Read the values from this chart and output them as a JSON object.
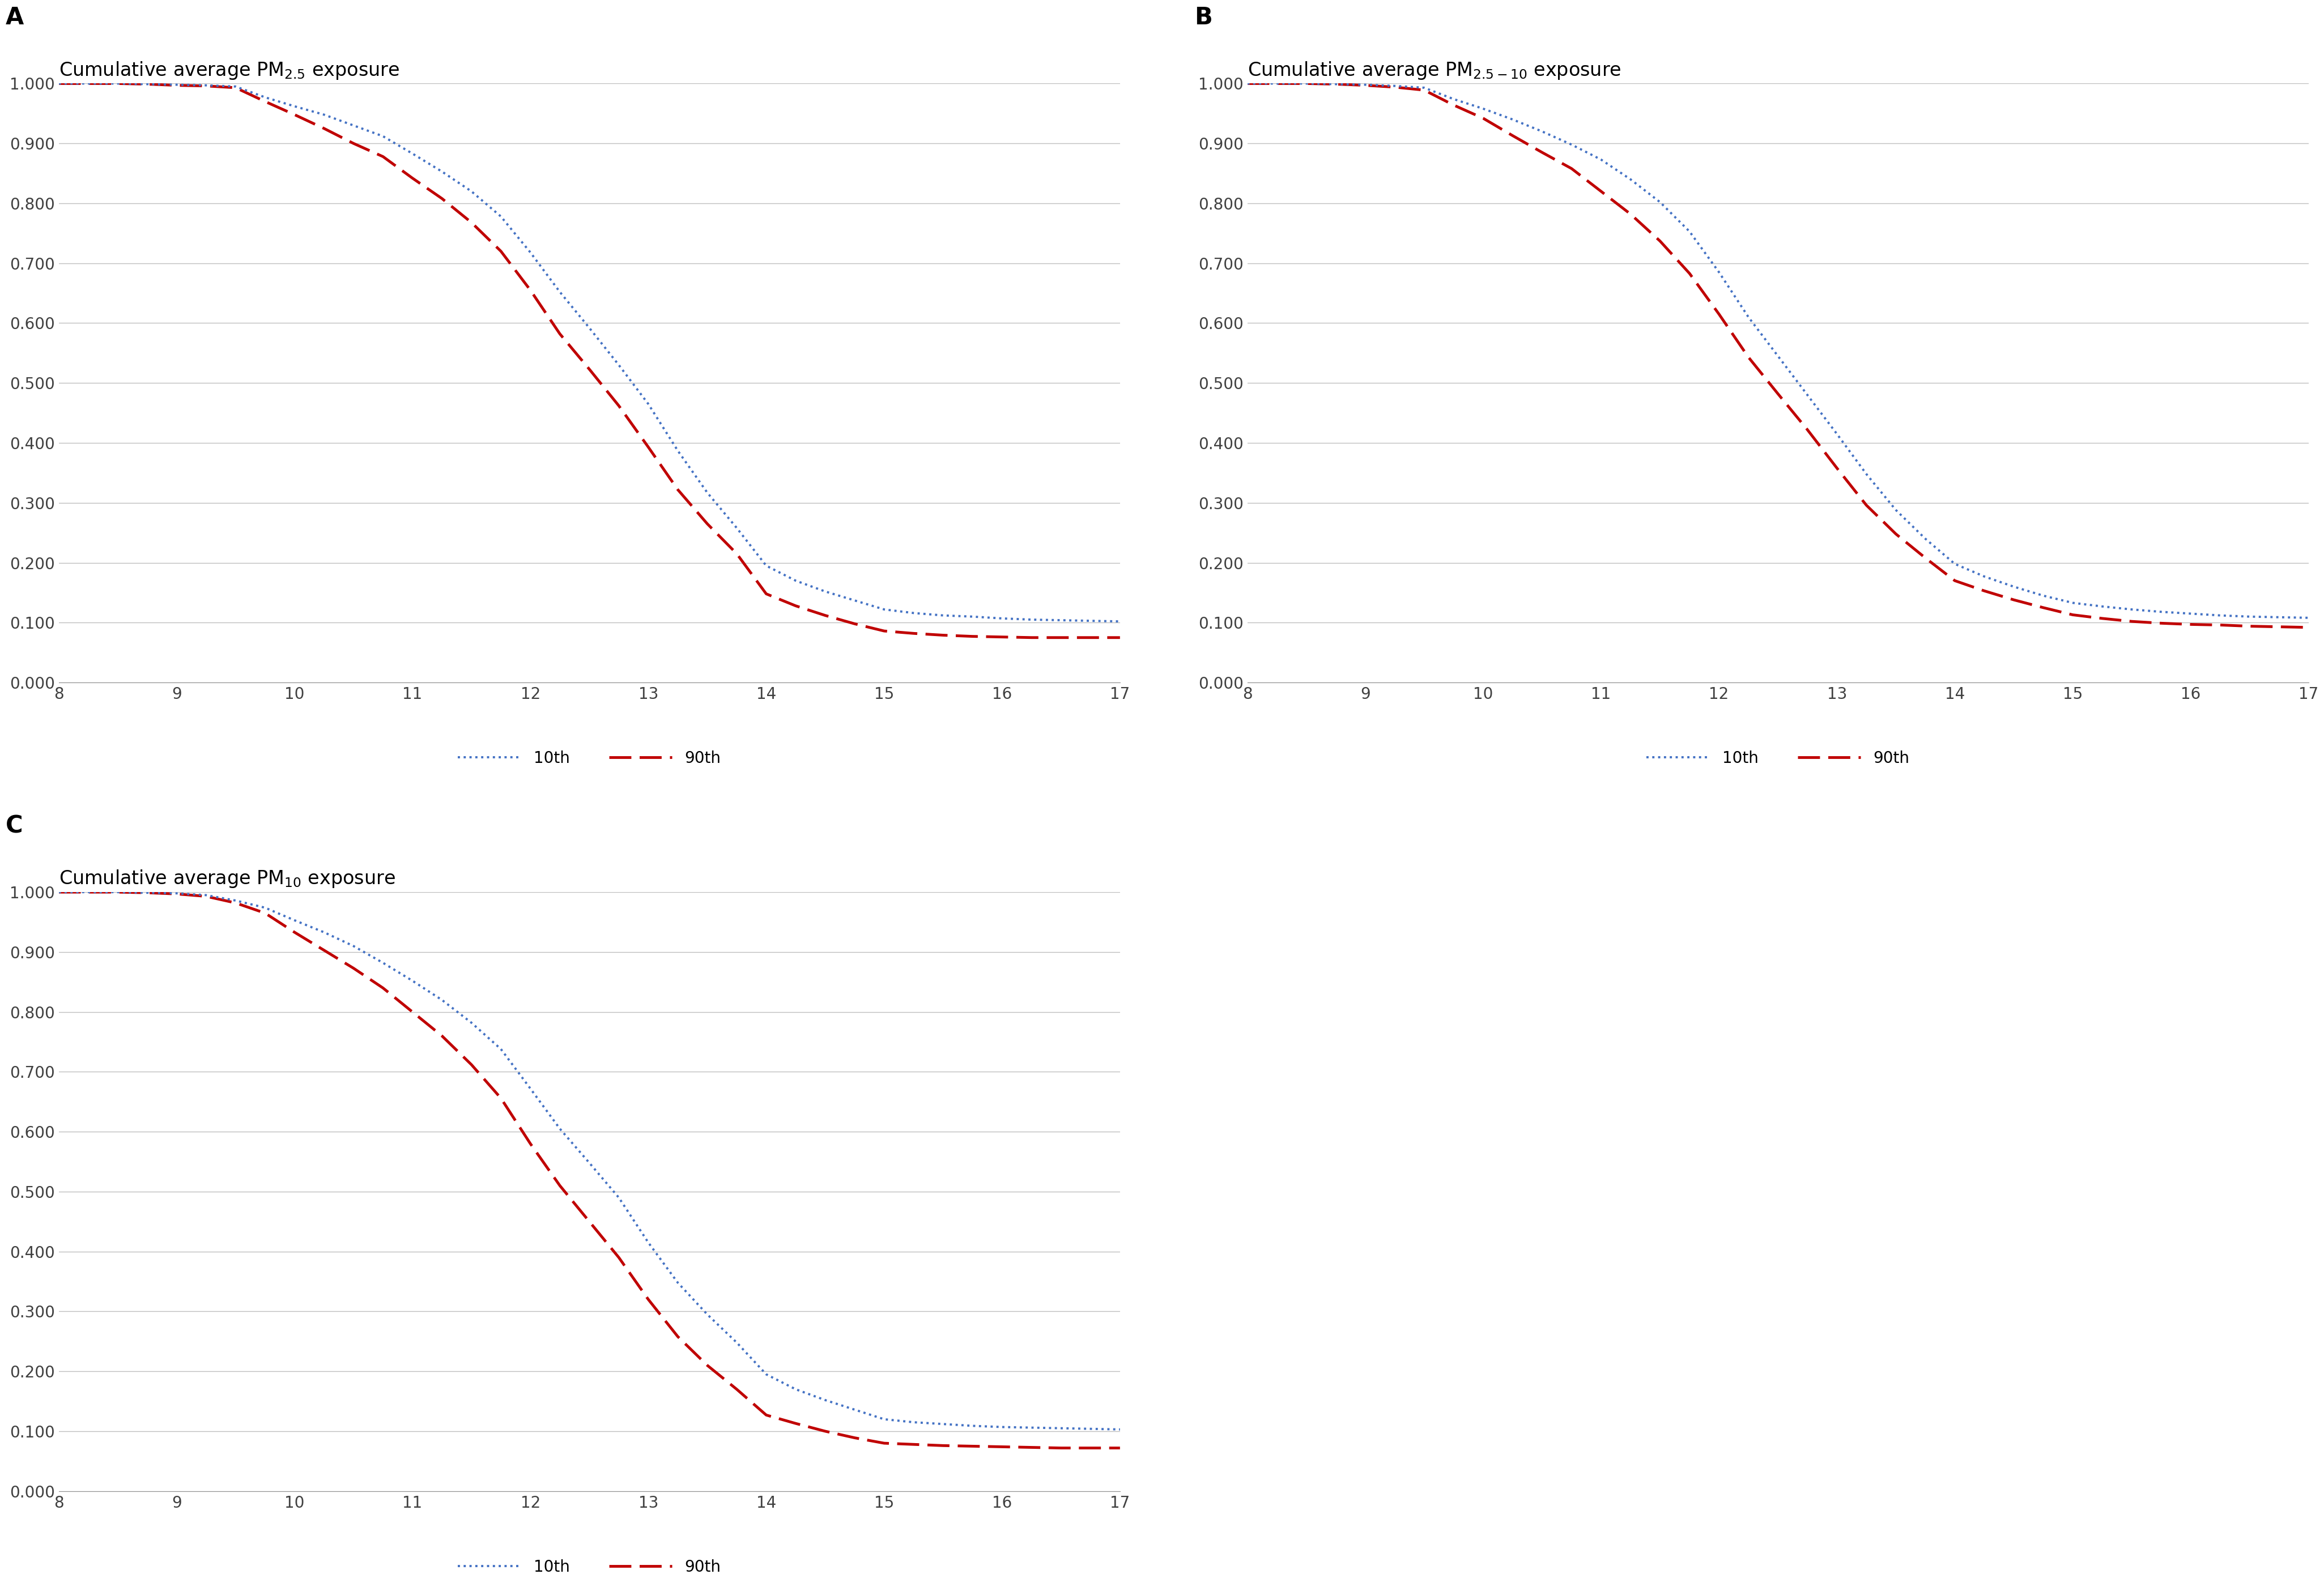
{
  "panel_labels": [
    "A",
    "B",
    "C"
  ],
  "titles": [
    "Cumulative average PM$_{2.5}$ exposure",
    "Cumulative average PM$_{2.5-10}$ exposure",
    "Cumulative average PM$_{10}$ exposure"
  ],
  "x_values": [
    8.0,
    8.25,
    8.5,
    8.75,
    9.0,
    9.25,
    9.5,
    9.75,
    10.0,
    10.25,
    10.5,
    10.75,
    11.0,
    11.25,
    11.5,
    11.75,
    12.0,
    12.25,
    12.5,
    12.75,
    13.0,
    13.25,
    13.5,
    13.75,
    14.0,
    14.25,
    14.5,
    14.75,
    15.0,
    15.25,
    15.5,
    15.75,
    16.0,
    16.25,
    16.5,
    16.75,
    17.0
  ],
  "A_10th": [
    1.0,
    1.0,
    1.0,
    0.999,
    0.998,
    0.997,
    0.995,
    0.977,
    0.962,
    0.948,
    0.93,
    0.912,
    0.883,
    0.853,
    0.82,
    0.778,
    0.718,
    0.652,
    0.592,
    0.53,
    0.465,
    0.387,
    0.317,
    0.258,
    0.195,
    0.17,
    0.152,
    0.137,
    0.122,
    0.116,
    0.112,
    0.11,
    0.107,
    0.105,
    0.104,
    0.103,
    0.102
  ],
  "A_90th": [
    1.0,
    1.0,
    1.0,
    0.999,
    0.997,
    0.996,
    0.993,
    0.97,
    0.948,
    0.925,
    0.9,
    0.878,
    0.842,
    0.808,
    0.768,
    0.72,
    0.655,
    0.582,
    0.523,
    0.462,
    0.393,
    0.322,
    0.265,
    0.215,
    0.148,
    0.128,
    0.112,
    0.098,
    0.086,
    0.082,
    0.079,
    0.077,
    0.076,
    0.075,
    0.075,
    0.075,
    0.075
  ],
  "B_10th": [
    1.0,
    1.0,
    1.0,
    0.999,
    0.998,
    0.996,
    0.993,
    0.974,
    0.958,
    0.94,
    0.92,
    0.898,
    0.873,
    0.84,
    0.802,
    0.753,
    0.685,
    0.61,
    0.545,
    0.48,
    0.415,
    0.348,
    0.288,
    0.24,
    0.198,
    0.177,
    0.16,
    0.145,
    0.133,
    0.127,
    0.122,
    0.118,
    0.115,
    0.112,
    0.11,
    0.109,
    0.108
  ],
  "B_90th": [
    1.0,
    1.0,
    1.0,
    0.999,
    0.997,
    0.994,
    0.989,
    0.964,
    0.942,
    0.913,
    0.885,
    0.858,
    0.82,
    0.782,
    0.737,
    0.683,
    0.615,
    0.543,
    0.482,
    0.422,
    0.358,
    0.296,
    0.248,
    0.208,
    0.17,
    0.153,
    0.138,
    0.125,
    0.113,
    0.107,
    0.102,
    0.099,
    0.097,
    0.096,
    0.094,
    0.093,
    0.092
  ],
  "C_10th": [
    1.0,
    1.0,
    1.0,
    0.999,
    0.998,
    0.995,
    0.986,
    0.974,
    0.953,
    0.933,
    0.91,
    0.882,
    0.852,
    0.82,
    0.782,
    0.738,
    0.672,
    0.605,
    0.548,
    0.49,
    0.415,
    0.348,
    0.295,
    0.248,
    0.195,
    0.17,
    0.152,
    0.136,
    0.12,
    0.115,
    0.112,
    0.109,
    0.107,
    0.106,
    0.105,
    0.104,
    0.103
  ],
  "C_90th": [
    1.0,
    1.0,
    1.0,
    0.999,
    0.997,
    0.993,
    0.982,
    0.965,
    0.933,
    0.903,
    0.873,
    0.84,
    0.8,
    0.76,
    0.712,
    0.656,
    0.58,
    0.51,
    0.45,
    0.39,
    0.32,
    0.258,
    0.21,
    0.17,
    0.127,
    0.113,
    0.1,
    0.089,
    0.08,
    0.078,
    0.076,
    0.075,
    0.074,
    0.073,
    0.072,
    0.072,
    0.072
  ],
  "xlim": [
    8,
    17
  ],
  "ylim": [
    0.0,
    1.0
  ],
  "yticks": [
    0.0,
    0.1,
    0.2,
    0.3,
    0.4,
    0.5,
    0.6,
    0.7,
    0.8,
    0.9,
    1.0
  ],
  "xticks": [
    8,
    9,
    10,
    11,
    12,
    13,
    14,
    15,
    16,
    17
  ],
  "line_10th_color": "#4472C4",
  "line_90th_color": "#C00000",
  "bg_color": "#ffffff",
  "grid_color": "#bfbfbf",
  "label_10th": "10th",
  "label_90th": "90th",
  "title_fontsize": 24,
  "panel_label_fontsize": 30,
  "tick_fontsize": 20,
  "legend_fontsize": 20
}
